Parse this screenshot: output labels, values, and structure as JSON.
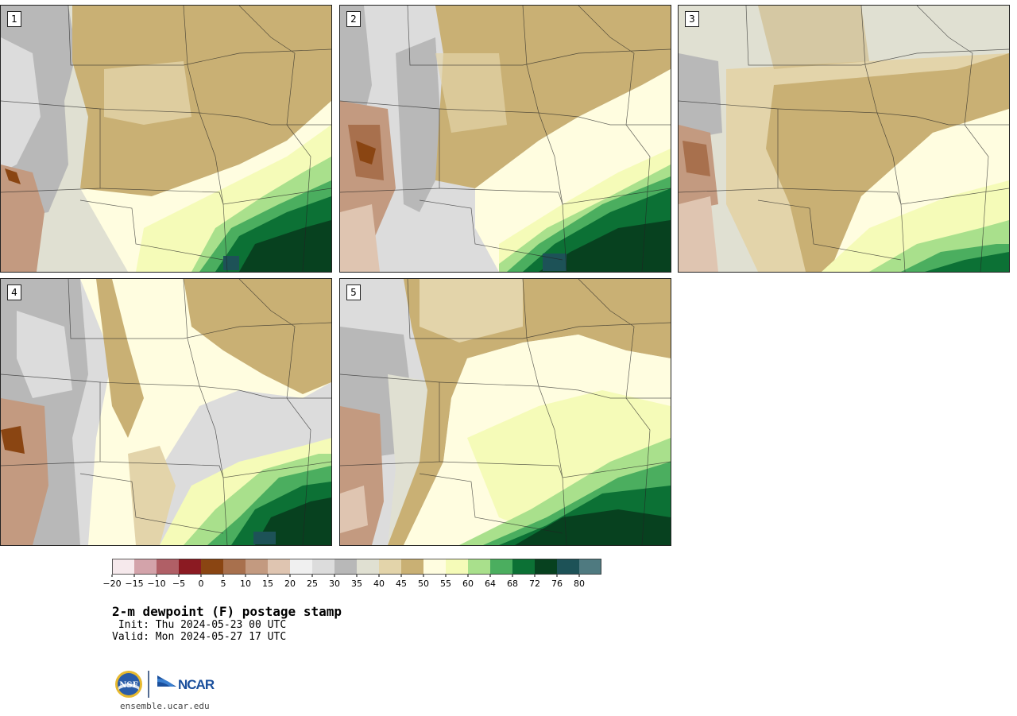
{
  "stamps": [
    {
      "label": "1"
    },
    {
      "label": "2"
    },
    {
      "label": "3"
    },
    {
      "label": "4"
    },
    {
      "label": "5"
    }
  ],
  "colorbar": {
    "colors": [
      "#f6e9ec",
      "#d3a3aa",
      "#b05f66",
      "#8b1a22",
      "#8a4512",
      "#a8704d",
      "#c39a80",
      "#dfc5b1",
      "#f0f0f0",
      "#dcdcdc",
      "#b8b8b8",
      "#e0e0d2",
      "#e3d4aa",
      "#c9b074",
      "#fffde0",
      "#f5fbb8",
      "#a9e08c",
      "#4bae5f",
      "#0c7135",
      "#07411f",
      "#1d5257",
      "#4f7a80"
    ],
    "ticks": [
      "−20",
      "−15",
      "−10",
      "−5",
      "0",
      "5",
      "10",
      "15",
      "20",
      "25",
      "30",
      "35",
      "40",
      "45",
      "50",
      "55",
      "60",
      "64",
      "68",
      "72",
      "76",
      "80"
    ]
  },
  "title": "2-m dewpoint (F) postage stamp",
  "init": " Init: Thu 2024-05-23 00 UTC",
  "valid": "Valid: Mon 2024-05-27 17 UTC",
  "logos": {
    "nsf": "NSF",
    "ncar": "NCAR"
  },
  "site": "ensemble.ucar.edu"
}
